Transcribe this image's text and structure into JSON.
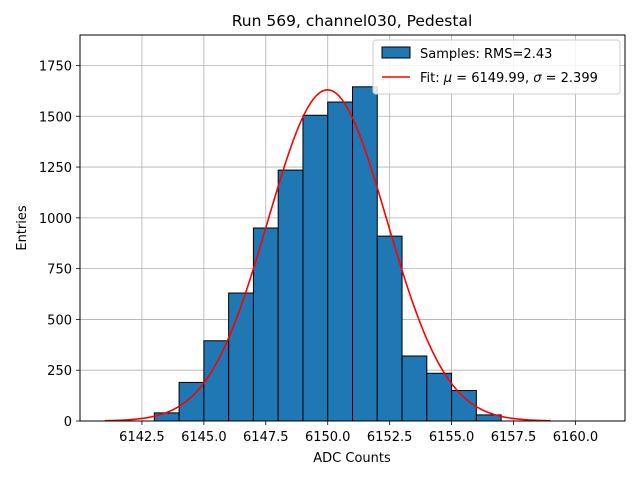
{
  "chart_data": {
    "type": "bar",
    "title": "Run 569, channel030, Pedestal",
    "xlabel": "ADC Counts",
    "ylabel": "Entries",
    "xlim": [
      6140.0,
      6162.0
    ],
    "ylim": [
      0,
      1900
    ],
    "grid": true,
    "legend_position": "top-right",
    "xticks": [
      6142.5,
      6145.0,
      6147.5,
      6150.0,
      6152.5,
      6155.0,
      6157.5,
      6160.0
    ],
    "xtick_labels": [
      "6142.5",
      "6145.0",
      "6147.5",
      "6150.0",
      "6152.5",
      "6155.0",
      "6157.5",
      "6160.0"
    ],
    "yticks": [
      0,
      250,
      500,
      750,
      1000,
      1250,
      1500,
      1750
    ],
    "ytick_labels": [
      "0",
      "250",
      "500",
      "750",
      "1000",
      "1250",
      "1500",
      "1750"
    ],
    "series": [
      {
        "name": "Samples: RMS=2.43",
        "kind": "histogram",
        "color": "#1f77b4",
        "edge_color": "#000000",
        "bin_edges": [
          6141,
          6142,
          6143,
          6144,
          6145,
          6146,
          6147,
          6148,
          6149,
          6150,
          6151,
          6152,
          6153,
          6154,
          6155,
          6156,
          6157,
          6158,
          6159,
          6160,
          6161
        ],
        "values": [
          0,
          0,
          40,
          190,
          395,
          630,
          950,
          1235,
          1505,
          1570,
          1645,
          910,
          320,
          235,
          150,
          30,
          0,
          0,
          0,
          0
        ]
      },
      {
        "name": "Fit: μ = 6149.99, σ = 2.399",
        "name_parts": [
          "Fit: ",
          "μ",
          " = 6149.99, ",
          "σ",
          " = 2.399"
        ],
        "kind": "line",
        "color": "#ff0000",
        "mu": 6149.99,
        "sigma": 2.399,
        "amplitude": 1630,
        "x_range": [
          6141,
          6159
        ]
      }
    ]
  }
}
